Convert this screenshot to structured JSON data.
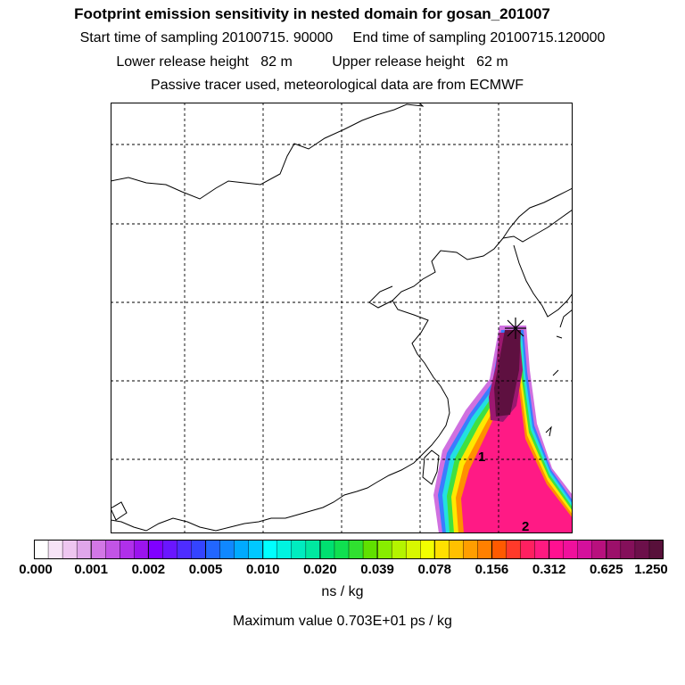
{
  "header": {
    "title": "Footprint emission sensitivity in nested domain for gosan_201007",
    "sampling": "Start time of sampling 20100715. 90000     End time of sampling 20100715.120000",
    "release": "Lower release height   82 m          Upper release height   62 m",
    "note": "Passive tracer used, meteorological data are from ECMWF"
  },
  "map": {
    "labels": {
      "marker_1": "1",
      "marker_2": "2"
    },
    "receptor_icon": "star-receptor-icon"
  },
  "colorbar": {
    "ticks": [
      "0.000",
      "0.001",
      "0.002",
      "0.005",
      "0.010",
      "0.020",
      "0.039",
      "0.078",
      "0.156",
      "0.312",
      "0.625",
      "1.250"
    ],
    "colors": [
      "#ffffff",
      "#f7e3f7",
      "#eec6f0",
      "#e0a6ea",
      "#d277e6",
      "#c254e6",
      "#b030ea",
      "#9b14ee",
      "#8000ff",
      "#6a16ff",
      "#4e2cff",
      "#3444ff",
      "#2266ff",
      "#1088ff",
      "#00aaff",
      "#00c8ff",
      "#00ffff",
      "#00f4e0",
      "#00ecc0",
      "#00e8a0",
      "#00e070",
      "#10e050",
      "#30e030",
      "#60e000",
      "#88ee00",
      "#b4f400",
      "#d8f800",
      "#f2ff00",
      "#ffe000",
      "#ffc000",
      "#ff9e00",
      "#ff8000",
      "#ff5a00",
      "#ff3a2a",
      "#ff2060",
      "#ff1a80",
      "#ff1090",
      "#f0109c",
      "#d4109c",
      "#b8107e",
      "#9c106a",
      "#84105a",
      "#6c104a",
      "#58103a"
    ],
    "unit": "ns / kg",
    "max_value": "Maximum value  0.703E+01 ps / kg"
  },
  "colors": {
    "coast": "#000000",
    "grid": "#000000"
  }
}
